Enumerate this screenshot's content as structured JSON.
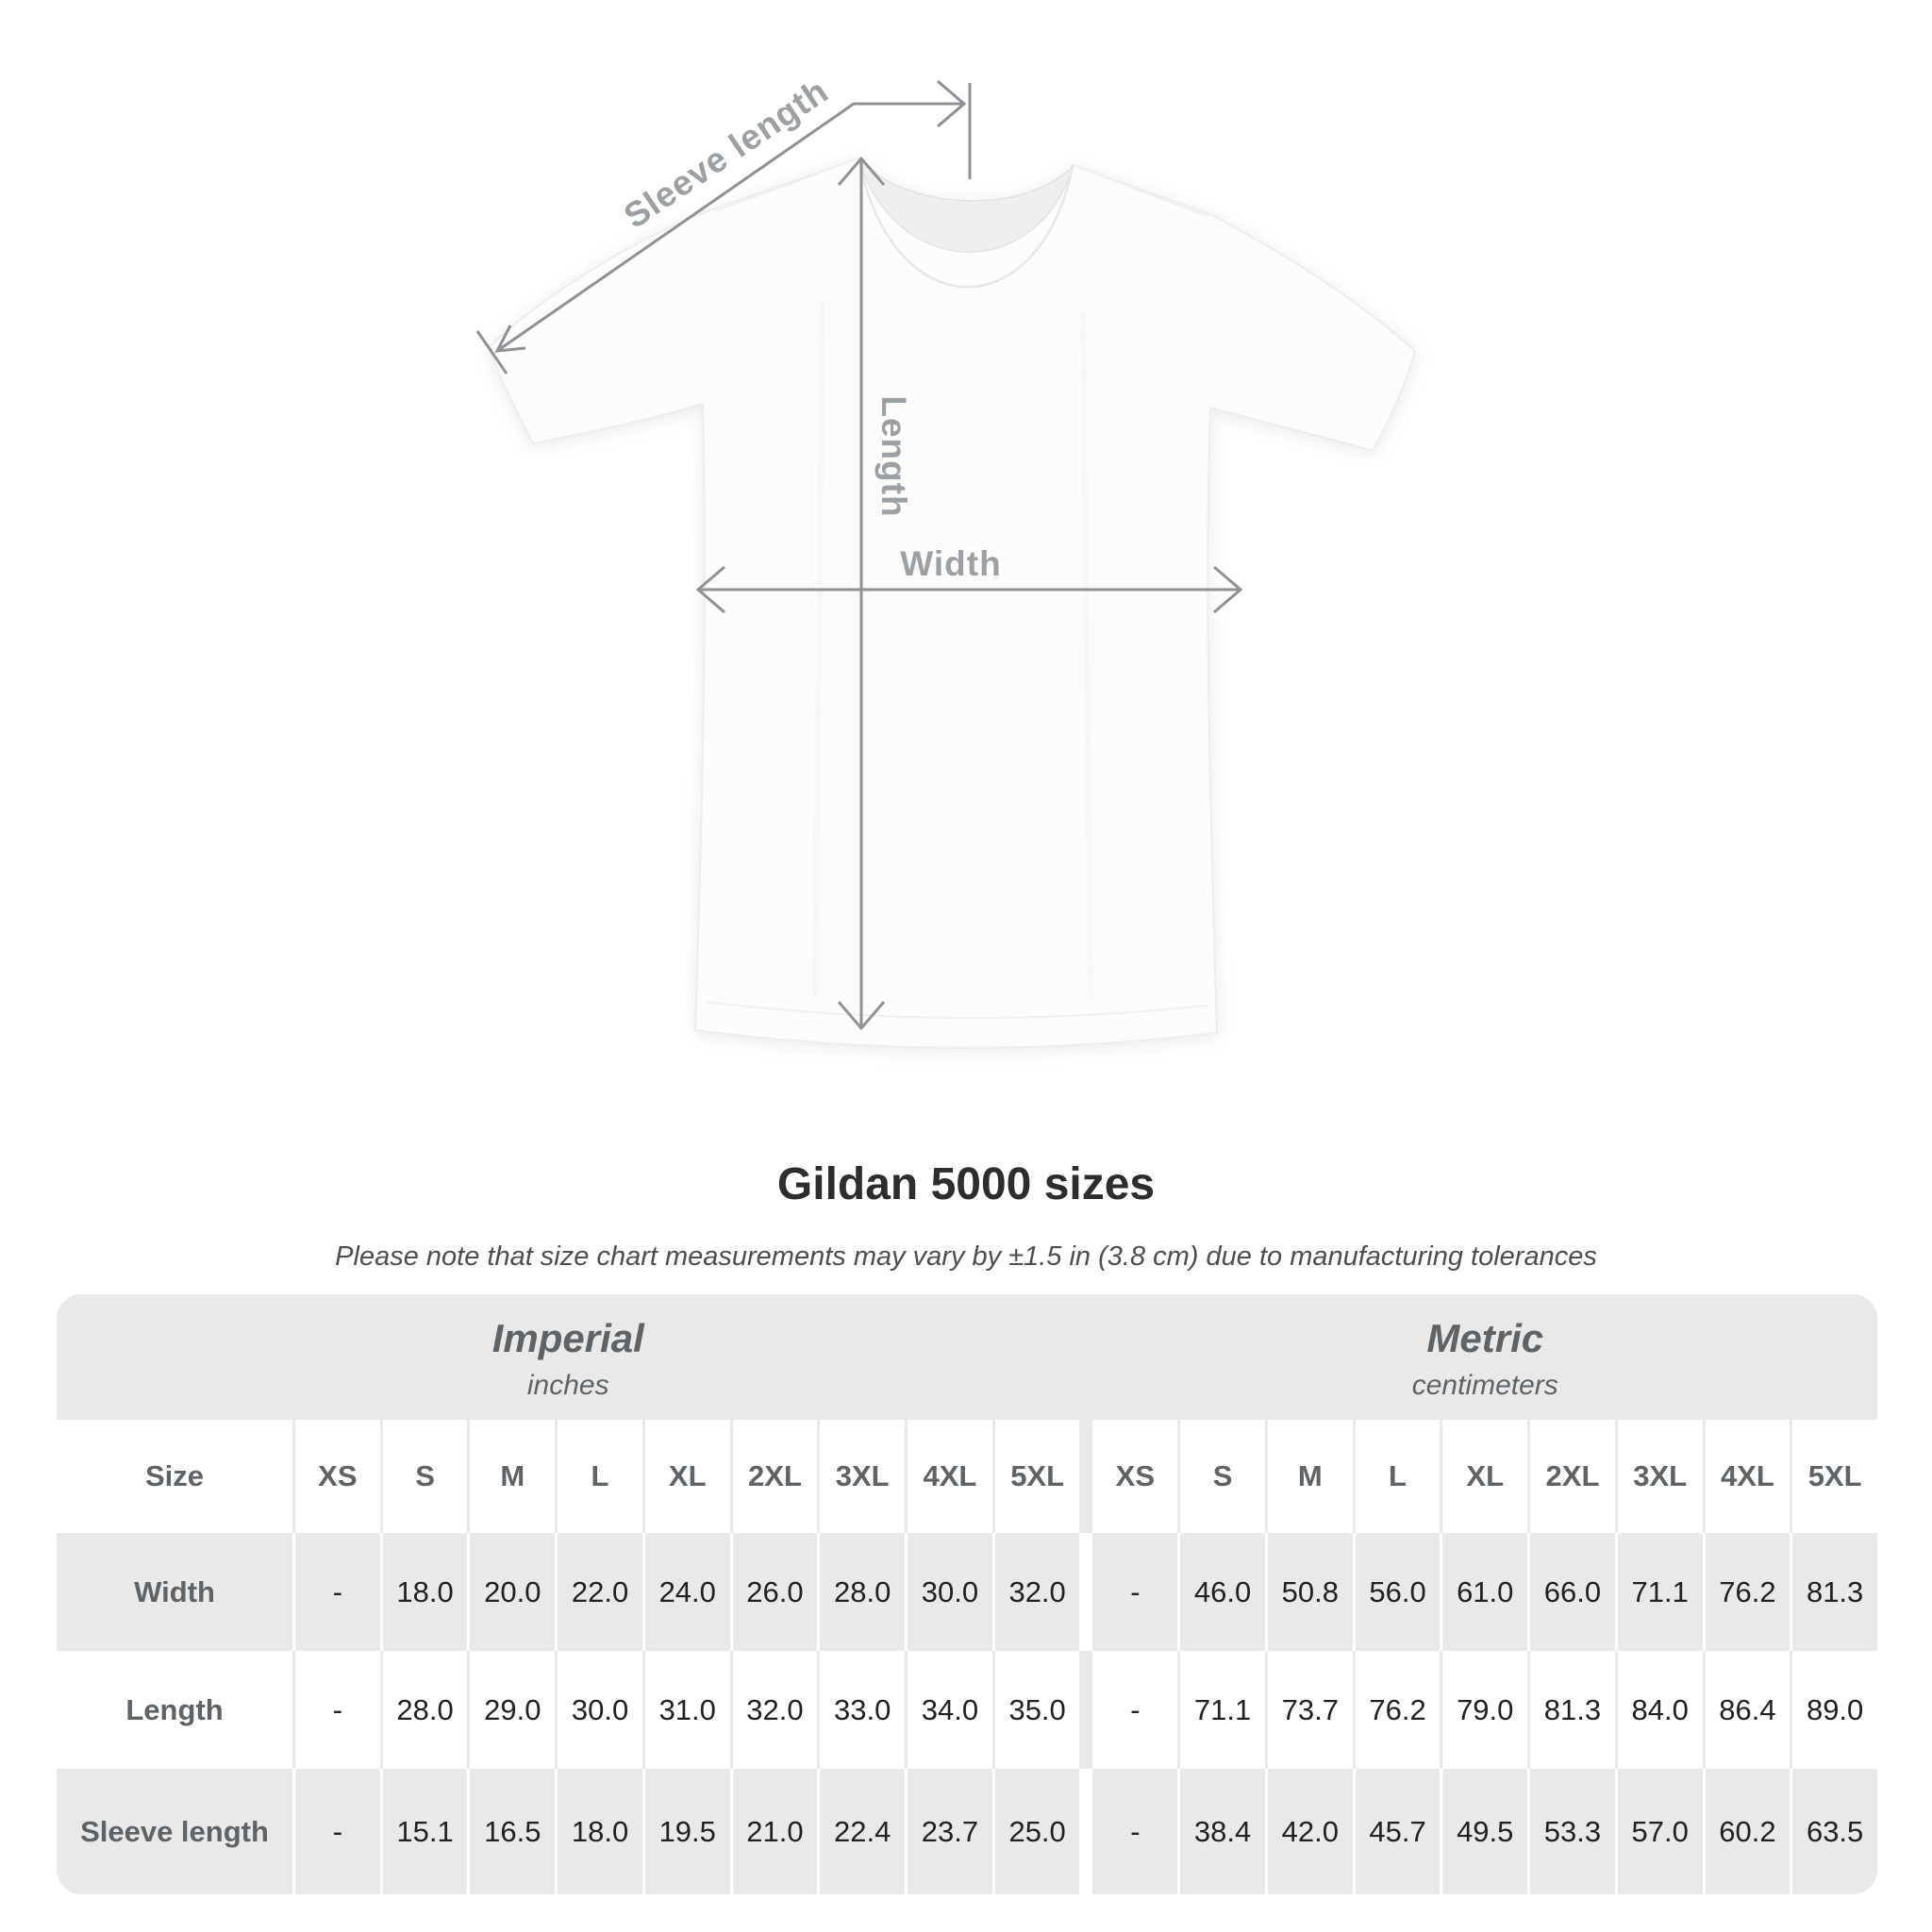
{
  "diagram": {
    "sleeve_length_label": "Sleeve length",
    "length_label": "Length",
    "width_label": "Width"
  },
  "title": "Gildan 5000 sizes",
  "note": "Please note that size chart measurements may vary by ±1.5 in (3.8 cm) due to manufacturing tolerances",
  "table": {
    "sections": [
      {
        "title": "Imperial",
        "unit": "inches"
      },
      {
        "title": "Metric",
        "unit": "centimeters"
      }
    ],
    "size_col_header": "Size",
    "sizes": [
      "XS",
      "S",
      "M",
      "L",
      "XL",
      "2XL",
      "3XL",
      "4XL",
      "5XL"
    ],
    "rows": [
      {
        "label": "Width",
        "imperial": [
          "-",
          "18.0",
          "20.0",
          "22.0",
          "24.0",
          "26.0",
          "28.0",
          "30.0",
          "32.0"
        ],
        "metric": [
          "-",
          "46.0",
          "50.8",
          "56.0",
          "61.0",
          "66.0",
          "71.1",
          "76.2",
          "81.3"
        ]
      },
      {
        "label": "Length",
        "imperial": [
          "-",
          "28.0",
          "29.0",
          "30.0",
          "31.0",
          "32.0",
          "33.0",
          "34.0",
          "35.0"
        ],
        "metric": [
          "-",
          "71.1",
          "73.7",
          "76.2",
          "79.0",
          "81.3",
          "84.0",
          "86.4",
          "89.0"
        ]
      },
      {
        "label": "Sleeve length",
        "imperial": [
          "-",
          "15.1",
          "16.5",
          "18.0",
          "19.5",
          "21.0",
          "22.4",
          "23.7",
          "25.0"
        ],
        "metric": [
          "-",
          "38.4",
          "42.0",
          "45.7",
          "49.5",
          "53.3",
          "57.0",
          "60.2",
          "63.5"
        ]
      }
    ]
  },
  "colors": {
    "table_bg": "#e9e9e9",
    "row_alt": "#ffffff",
    "header_text": "#5d6367",
    "value_text": "#212121",
    "title_text": "#2d2d2d",
    "note_text": "#4e4e4e",
    "diagram_line": "#8e9296",
    "diagram_label": "#9aa0a4"
  },
  "chart_data": {
    "type": "table",
    "title": "Gildan 5000 sizes",
    "note": "Please note that size chart measurements may vary by ±1.5 in (3.8 cm) due to manufacturing tolerances",
    "column_groups": [
      "Imperial (inches)",
      "Metric (centimeters)"
    ],
    "columns": [
      "Size",
      "XS",
      "S",
      "M",
      "L",
      "XL",
      "2XL",
      "3XL",
      "4XL",
      "5XL",
      "XS",
      "S",
      "M",
      "L",
      "XL",
      "2XL",
      "3XL",
      "4XL",
      "5XL"
    ],
    "rows": [
      [
        "Width",
        "-",
        18.0,
        20.0,
        22.0,
        24.0,
        26.0,
        28.0,
        30.0,
        32.0,
        "-",
        46.0,
        50.8,
        56.0,
        61.0,
        66.0,
        71.1,
        76.2,
        81.3
      ],
      [
        "Length",
        "-",
        28.0,
        29.0,
        30.0,
        31.0,
        32.0,
        33.0,
        34.0,
        35.0,
        "-",
        71.1,
        73.7,
        76.2,
        79.0,
        81.3,
        84.0,
        86.4,
        89.0
      ],
      [
        "Sleeve length",
        "-",
        15.1,
        16.5,
        18.0,
        19.5,
        21.0,
        22.4,
        23.7,
        25.0,
        "-",
        38.4,
        42.0,
        45.7,
        49.5,
        53.3,
        57.0,
        60.2,
        63.5
      ]
    ]
  }
}
